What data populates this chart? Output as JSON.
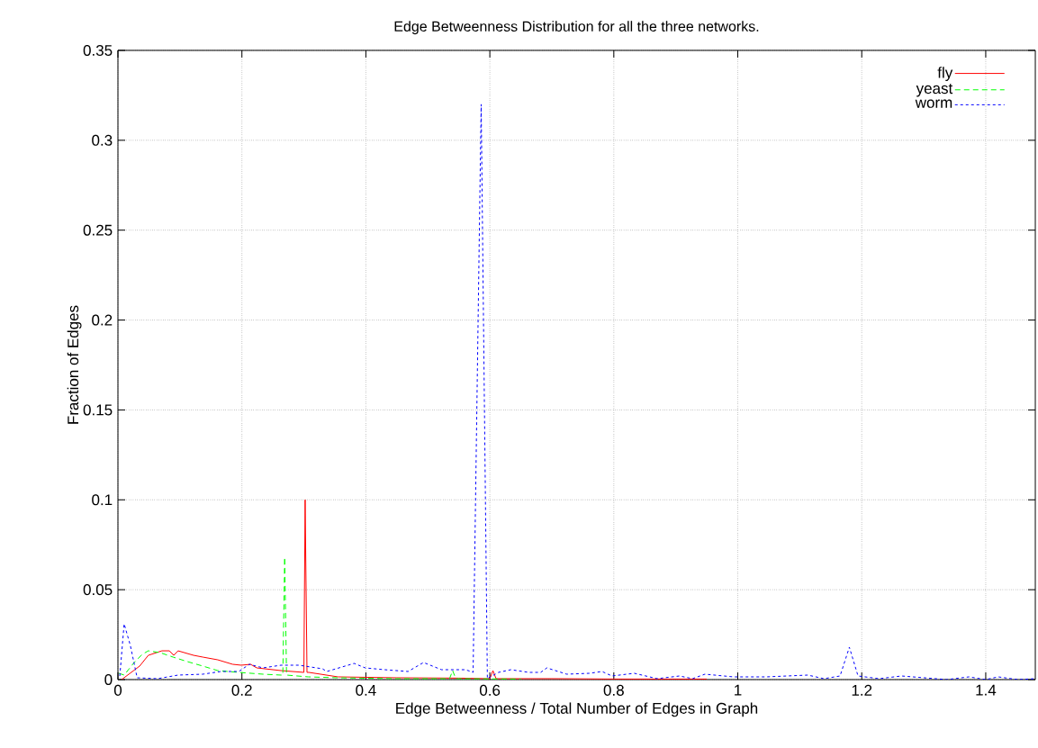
{
  "chart_data": {
    "type": "line",
    "title": "Edge Betweenness Distribution for all the three networks.",
    "xlabel": "Edge Betweenness / Total Number of Edges in Graph",
    "ylabel": "Fraction of Edges",
    "xlim": [
      0,
      1.48
    ],
    "ylim": [
      0,
      0.35
    ],
    "xticks": [
      0,
      0.2,
      0.4,
      0.6,
      0.8,
      1,
      1.2,
      1.4
    ],
    "yticks": [
      0,
      0.05,
      0.1,
      0.15,
      0.2,
      0.25,
      0.3,
      0.35
    ],
    "grid": true,
    "legend": "top right",
    "series": [
      {
        "name": "fly",
        "color": "#ff0000",
        "line_style": "solid",
        "x": [
          0.006,
          0.035,
          0.049,
          0.071,
          0.083,
          0.09,
          0.097,
          0.122,
          0.137,
          0.161,
          0.185,
          0.199,
          0.214,
          0.224,
          0.263,
          0.3,
          0.302,
          0.305,
          0.308,
          0.355,
          0.45,
          0.55,
          0.6,
          0.605,
          0.61,
          0.7,
          0.8,
          0.95
        ],
        "values": [
          0,
          0.0075,
          0.0135,
          0.016,
          0.016,
          0.0135,
          0.016,
          0.0135,
          0.0125,
          0.011,
          0.0085,
          0.008,
          0.0085,
          0.0065,
          0.005,
          0.004,
          0.1,
          0.004,
          0.004,
          0.0015,
          0.001,
          0.0008,
          0.0005,
          0.005,
          0.0005,
          0.0005,
          0.0003,
          0.0003
        ]
      },
      {
        "name": "yeast",
        "color": "#00ff00",
        "line_style": "dashed",
        "x": [
          0.0015,
          0.01,
          0.025,
          0.039,
          0.049,
          0.068,
          0.089,
          0.112,
          0.137,
          0.161,
          0.195,
          0.234,
          0.263,
          0.266,
          0.269,
          0.272,
          0.307,
          0.355,
          0.45,
          0.535,
          0.54,
          0.545,
          0.65
        ],
        "values": [
          0.0035,
          0.0025,
          0.009,
          0.014,
          0.016,
          0.015,
          0.0125,
          0.01,
          0.0075,
          0.005,
          0.004,
          0.003,
          0.0025,
          0.0025,
          0.068,
          0.0025,
          0.0015,
          0.001,
          0.0005,
          0.0005,
          0.005,
          0.0005,
          0.0003
        ]
      },
      {
        "name": "worm",
        "color": "#0000ff",
        "line_style": "dotted",
        "x": [
          0.003,
          0.01,
          0.02,
          0.031,
          0.064,
          0.097,
          0.137,
          0.166,
          0.195,
          0.212,
          0.234,
          0.263,
          0.292,
          0.33,
          0.337,
          0.381,
          0.399,
          0.43,
          0.468,
          0.493,
          0.522,
          0.561,
          0.573,
          0.586,
          0.596,
          0.598,
          0.614,
          0.634,
          0.663,
          0.682,
          0.692,
          0.724,
          0.761,
          0.781,
          0.797,
          0.833,
          0.87,
          0.906,
          0.927,
          0.947,
          0.993,
          1.046,
          1.113,
          1.139,
          1.165,
          1.18,
          1.194,
          1.228,
          1.264,
          1.337,
          1.373,
          1.4,
          1.42,
          1.452,
          1.48
        ],
        "values": [
          0.002,
          0.031,
          0.019,
          0.001,
          0.0005,
          0.0025,
          0.003,
          0.0045,
          0.0045,
          0.0085,
          0.0065,
          0.008,
          0.008,
          0.006,
          0.0045,
          0.009,
          0.0065,
          0.0055,
          0.0045,
          0.0095,
          0.0055,
          0.0055,
          0.004,
          0.32,
          0.0005,
          0.001,
          0.004,
          0.0055,
          0.004,
          0.004,
          0.0065,
          0.003,
          0.0035,
          0.0045,
          0.002,
          0.0035,
          0.0005,
          0.002,
          0.0005,
          0.003,
          0.0015,
          0.0015,
          0.0025,
          0.0005,
          0.002,
          0.018,
          0.002,
          0.0005,
          0.002,
          0.0,
          0.0015,
          0.0,
          0.0015,
          0.0,
          0.0005
        ]
      }
    ]
  }
}
